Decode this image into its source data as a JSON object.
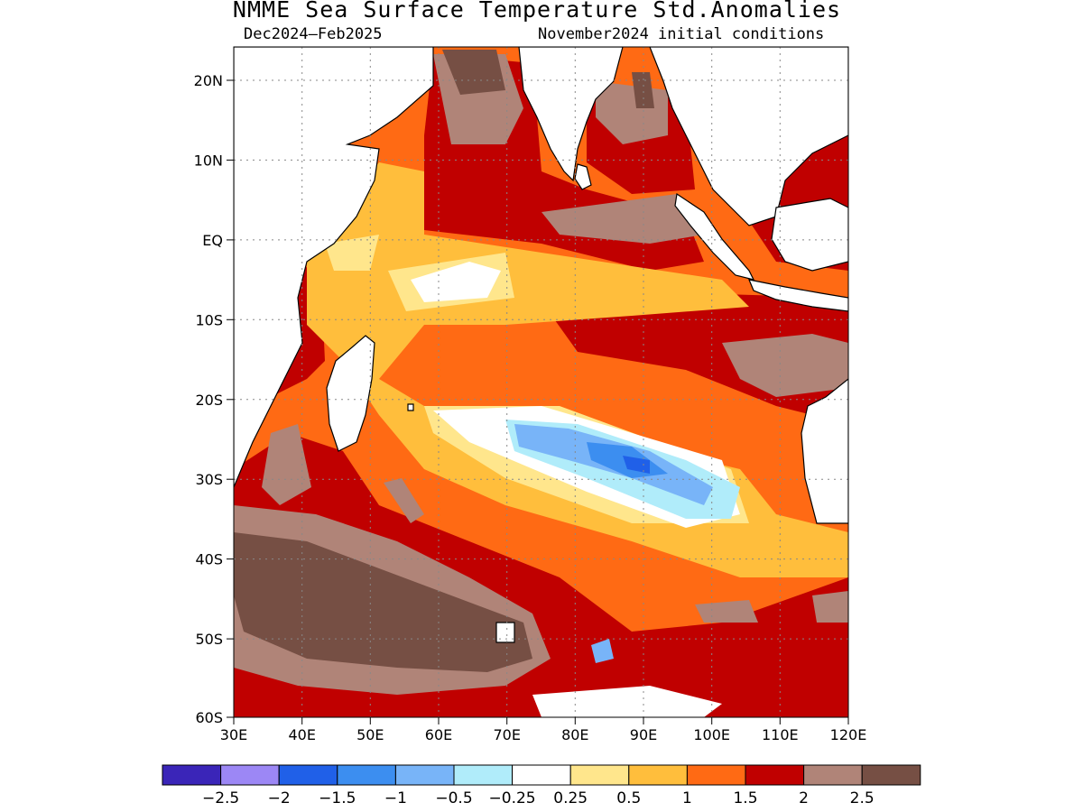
{
  "title": "NMME Sea Surface Temperature Std.Anomalies",
  "subtitle_left": "Dec2024–Feb2025",
  "subtitle_right": "November2024 initial conditions",
  "map": {
    "lon_range": [
      30,
      120
    ],
    "lat_range": [
      -60,
      24
    ],
    "grid_lines": "dotted",
    "lon_tick_labels": [
      "30E",
      "40E",
      "50E",
      "60E",
      "70E",
      "80E",
      "90E",
      "100E",
      "110E",
      "120E"
    ],
    "lat_tick_labels": [
      "20N",
      "10N",
      "EQ",
      "10S",
      "20S",
      "30S",
      "40S",
      "50S",
      "60S"
    ],
    "lon_ticks": [
      30,
      40,
      50,
      60,
      70,
      80,
      90,
      100,
      110,
      120
    ],
    "lat_ticks": [
      20,
      10,
      0,
      -10,
      -20,
      -30,
      -40,
      -50,
      -60
    ]
  },
  "colorbar": {
    "colors": [
      "#3a25b8",
      "#9c87f5",
      "#2060e8",
      "#3c8ef0",
      "#78b4f8",
      "#b0ecfa",
      "#ffffff",
      "#ffe68c",
      "#ffbe3c",
      "#ff6a14",
      "#c00000",
      "#b08478",
      "#764f44"
    ],
    "labels": [
      "−2.5",
      "−2",
      "−1.5",
      "−1",
      "−0.5",
      "−0.25",
      "0.25",
      "0.5",
      "1",
      "1.5",
      "2",
      "2.5"
    ]
  },
  "colors": {
    "land": "#ffffff",
    "coast": "#000000"
  }
}
